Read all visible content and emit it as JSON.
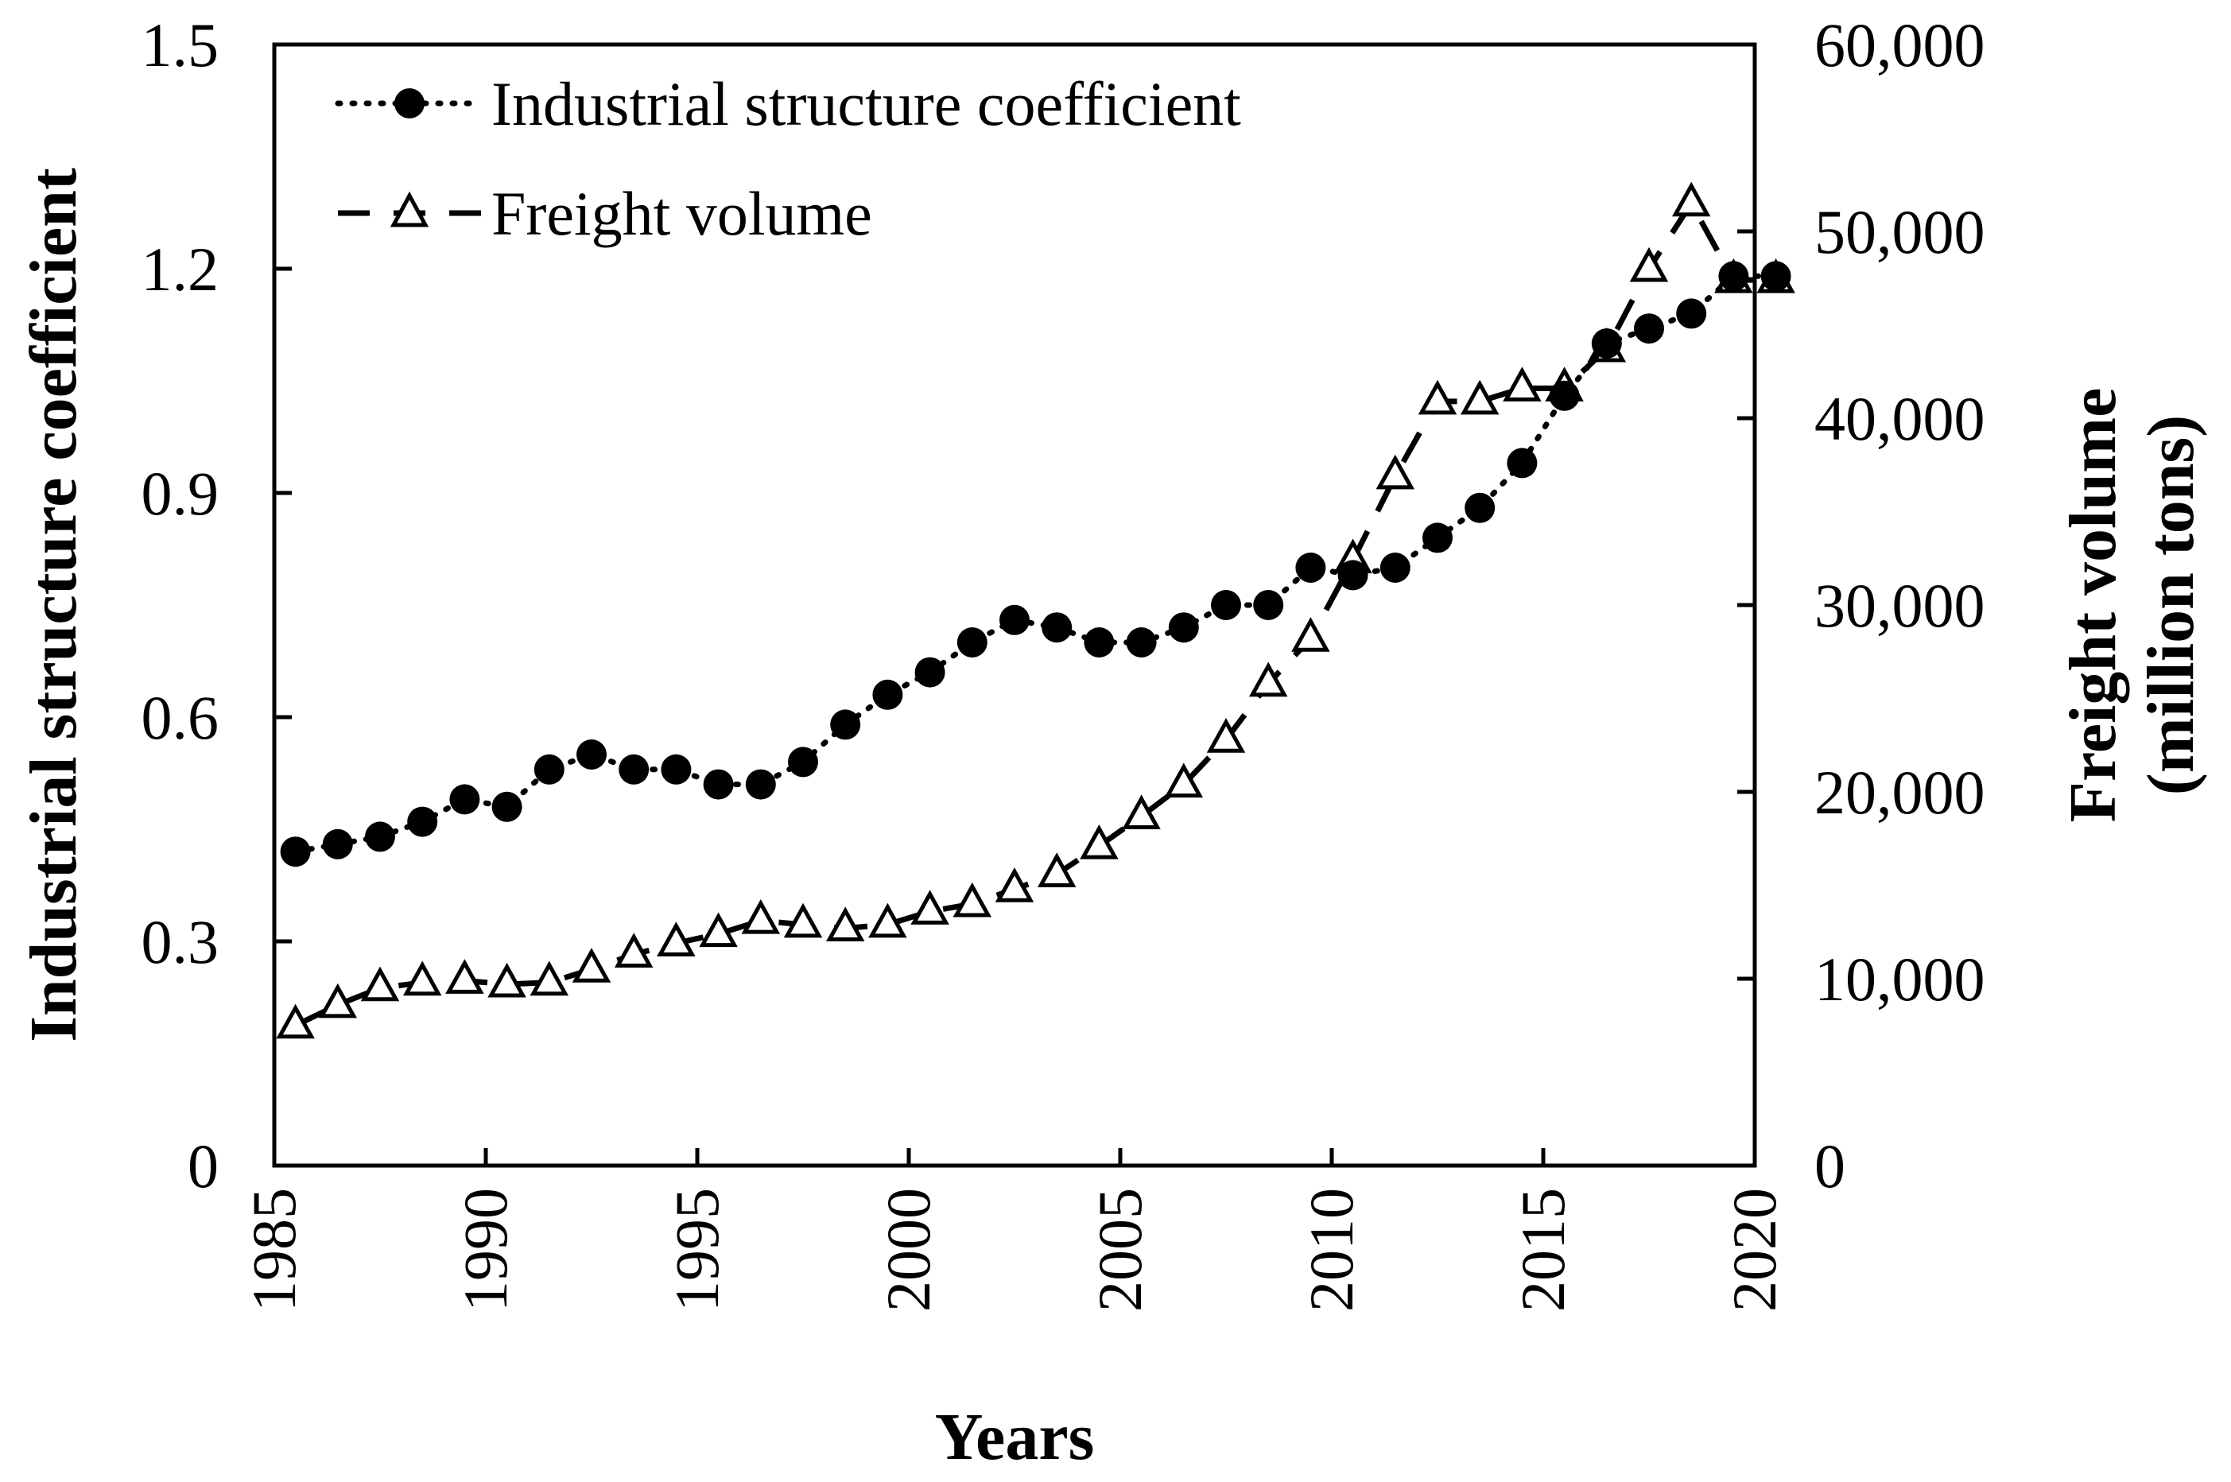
{
  "chart_data": {
    "type": "line",
    "title": "",
    "xlabel": "Years",
    "ylabel": "Industrial structure coefficient",
    "y2label_line1": "Freight volume",
    "y2label_line2": "(million tons)",
    "xlim": [
      1985,
      2020
    ],
    "ylim": [
      0,
      1.5
    ],
    "y2lim": [
      0,
      60000
    ],
    "x_ticks": [
      1985,
      1990,
      1995,
      2000,
      2005,
      2010,
      2015,
      2020
    ],
    "y_ticks": [
      "0",
      "0.3",
      "0.6",
      "0.9",
      "1.2",
      "1.5"
    ],
    "y2_ticks": [
      "0",
      "10,000",
      "20,000",
      "30,000",
      "40,000",
      "50,000",
      "60,000"
    ],
    "legend_position": "top-left",
    "x": [
      1985,
      1986,
      1987,
      1988,
      1989,
      1990,
      1991,
      1992,
      1993,
      1994,
      1995,
      1996,
      1997,
      1998,
      1999,
      2000,
      2001,
      2002,
      2003,
      2004,
      2005,
      2006,
      2007,
      2008,
      2009,
      2010,
      2011,
      2012,
      2013,
      2014,
      2015,
      2016,
      2017,
      2018,
      2019,
      2020
    ],
    "series": [
      {
        "name": "Industrial structure coefficient",
        "axis": "left",
        "marker": "circle",
        "line": "dotted",
        "values": [
          0.42,
          0.43,
          0.44,
          0.46,
          0.49,
          0.48,
          0.53,
          0.55,
          0.53,
          0.53,
          0.51,
          0.51,
          0.54,
          0.59,
          0.63,
          0.66,
          0.7,
          0.73,
          0.72,
          0.7,
          0.7,
          0.72,
          0.75,
          0.75,
          0.8,
          0.79,
          0.8,
          0.84,
          0.88,
          0.94,
          1.03,
          1.1,
          1.12,
          1.14,
          1.19,
          1.19
        ]
      },
      {
        "name": "Freight volume",
        "axis": "right",
        "marker": "triangle",
        "line": "dashed",
        "values": [
          7500,
          8600,
          9500,
          9800,
          9900,
          9700,
          9800,
          10500,
          11300,
          11900,
          12400,
          13100,
          12900,
          12700,
          12900,
          13600,
          14000,
          14800,
          15600,
          17100,
          18700,
          20400,
          22800,
          25800,
          28200,
          32400,
          36900,
          40900,
          40900,
          41600,
          41600,
          43700,
          48000,
          51500,
          47400,
          47400
        ]
      }
    ]
  }
}
